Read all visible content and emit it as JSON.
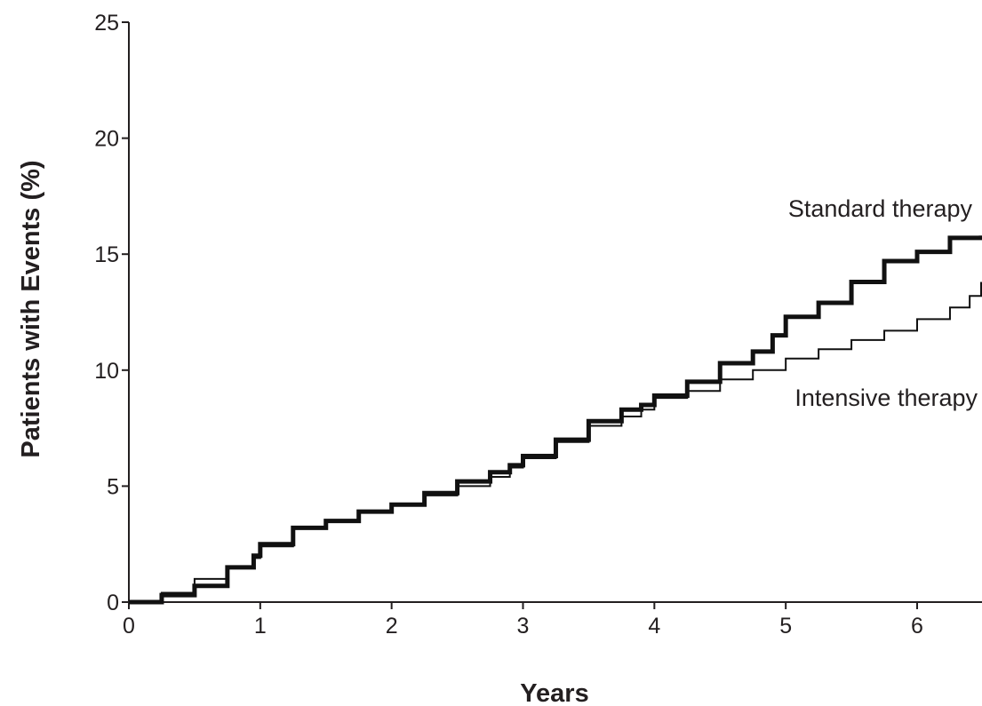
{
  "chart_data": {
    "type": "line",
    "title": "",
    "xlabel": "Years",
    "ylabel": "Patients with Events (%)",
    "xlim": [
      0,
      6.5
    ],
    "ylim": [
      0,
      25
    ],
    "xticks": [
      "0",
      "1",
      "2",
      "3",
      "4",
      "5",
      "6"
    ],
    "yticks": [
      "0",
      "5",
      "10",
      "15",
      "20",
      "25"
    ],
    "grid": false,
    "legend": "inline labels at right",
    "line_color": "#111111",
    "series": [
      {
        "name": "Standard therapy",
        "style": "thick",
        "x": [
          0,
          0.25,
          0.5,
          0.75,
          0.95,
          1.0,
          1.25,
          1.5,
          1.75,
          2.0,
          2.25,
          2.5,
          2.75,
          2.9,
          3.0,
          3.25,
          3.5,
          3.75,
          3.9,
          4.0,
          4.25,
          4.5,
          4.75,
          4.9,
          5.0,
          5.25,
          5.5,
          5.75,
          6.0,
          6.25,
          6.5
        ],
        "values": [
          0,
          0.3,
          0.7,
          1.5,
          2.0,
          2.5,
          3.2,
          3.5,
          3.9,
          4.2,
          4.7,
          5.2,
          5.6,
          5.9,
          6.3,
          7.0,
          7.8,
          8.3,
          8.5,
          8.9,
          9.5,
          10.3,
          10.8,
          11.5,
          12.3,
          12.9,
          13.8,
          14.7,
          15.1,
          15.7,
          15.8
        ]
      },
      {
        "name": "Intensive therapy",
        "style": "thin",
        "x": [
          0,
          0.25,
          0.5,
          0.75,
          0.95,
          1.0,
          1.25,
          1.5,
          1.75,
          2.0,
          2.25,
          2.5,
          2.75,
          2.9,
          3.0,
          3.25,
          3.5,
          3.75,
          3.9,
          4.0,
          4.25,
          4.5,
          4.75,
          5.0,
          5.25,
          5.5,
          5.75,
          6.0,
          6.25,
          6.4,
          6.5
        ],
        "values": [
          0,
          0.4,
          1.0,
          1.5,
          1.9,
          2.4,
          3.2,
          3.5,
          3.9,
          4.2,
          4.6,
          5.0,
          5.4,
          5.8,
          6.2,
          6.9,
          7.6,
          8.0,
          8.3,
          8.8,
          9.1,
          9.6,
          10.0,
          10.5,
          10.9,
          11.3,
          11.7,
          12.2,
          12.7,
          13.2,
          13.8
        ]
      }
    ]
  }
}
